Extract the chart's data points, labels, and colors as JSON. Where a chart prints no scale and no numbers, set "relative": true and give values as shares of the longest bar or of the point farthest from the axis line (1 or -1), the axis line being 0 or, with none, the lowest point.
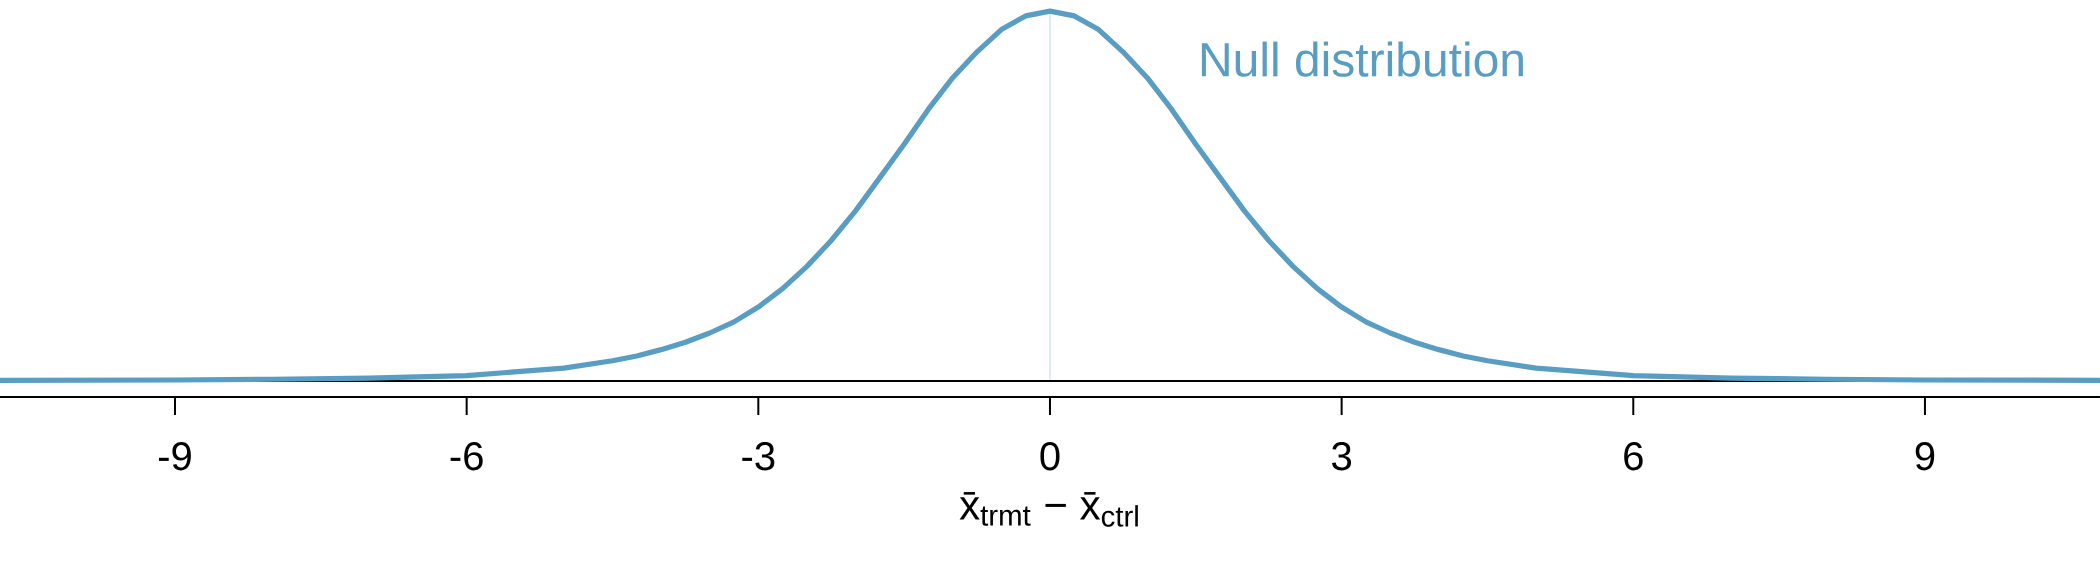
{
  "chart_data": {
    "type": "line",
    "relative": true,
    "xlabel": "x̄$_{trmt}$ − x̄$_{ctrl}$",
    "xlim": [
      -10.8,
      10.8
    ],
    "xticks": [
      -9,
      -6,
      -3,
      0,
      3,
      6,
      9
    ],
    "x": [
      -10.8,
      -9,
      -8,
      -7,
      -6,
      -5,
      -4.5,
      -4.25,
      -4,
      -3.75,
      -3.5,
      -3.25,
      -3,
      -2.75,
      -2.5,
      -2.25,
      -2,
      -1.75,
      -1.5,
      -1.25,
      -1,
      -0.75,
      -0.5,
      -0.25,
      0,
      0.25,
      0.5,
      0.75,
      1,
      1.25,
      1.5,
      1.75,
      2,
      2.25,
      2.5,
      2.75,
      3,
      3.25,
      3.5,
      3.75,
      4,
      4.25,
      4.5,
      5,
      6,
      7,
      8,
      9,
      10.8
    ],
    "series": [
      {
        "name": "Null distribution",
        "color": "#5a9dc2",
        "values": [
          0.002,
          0.003,
          0.005,
          0.008,
          0.015,
          0.035,
          0.055,
          0.068,
          0.085,
          0.105,
          0.13,
          0.16,
          0.2,
          0.25,
          0.31,
          0.38,
          0.46,
          0.55,
          0.64,
          0.735,
          0.82,
          0.89,
          0.95,
          0.987,
          1.0,
          0.987,
          0.95,
          0.89,
          0.82,
          0.735,
          0.64,
          0.55,
          0.46,
          0.38,
          0.31,
          0.25,
          0.2,
          0.16,
          0.13,
          0.105,
          0.085,
          0.068,
          0.055,
          0.035,
          0.015,
          0.008,
          0.005,
          0.003,
          0.002
        ]
      }
    ],
    "ref_lines": [
      {
        "axis": "x",
        "value": 0,
        "color": "#c9dfee"
      }
    ],
    "grid": false,
    "marker": "none",
    "line_style": "solid"
  }
}
